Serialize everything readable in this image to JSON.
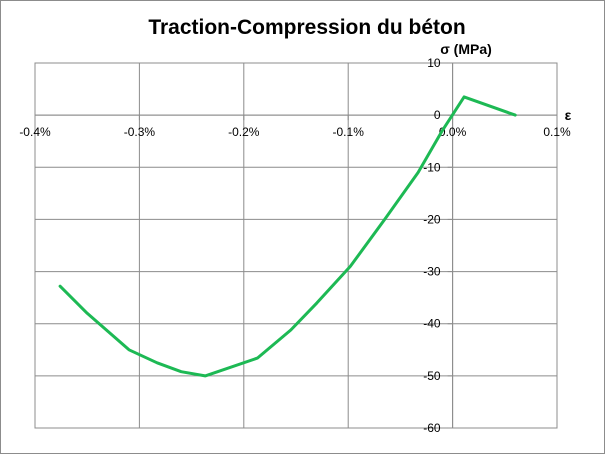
{
  "chart_data": {
    "type": "line",
    "title": "Traction-Compression du béton",
    "xlabel": "ε",
    "ylabel": "σ (MPa)",
    "xlim": [
      -0.4,
      0.1
    ],
    "ylim": [
      -60,
      10
    ],
    "x_ticks": [
      -0.4,
      -0.3,
      -0.2,
      -0.1,
      0.0,
      0.1
    ],
    "x_tick_labels": [
      "-0.4%",
      "-0.3%",
      "-0.2%",
      "-0.1%",
      "0.0%",
      "0.1%"
    ],
    "y_ticks": [
      10,
      0,
      -10,
      -20,
      -30,
      -40,
      -50,
      -60
    ],
    "y_tick_labels": [
      "10",
      "0",
      "-10",
      "-20",
      "-30",
      "-40",
      "-50",
      "-60"
    ],
    "grid": true,
    "legend": "none",
    "series_color": "#1db954",
    "series": [
      {
        "x": [
          -0.376,
          -0.35,
          -0.31,
          -0.283,
          -0.26,
          -0.237,
          -0.187,
          -0.155,
          -0.13,
          -0.098,
          -0.065,
          -0.033,
          -0.01,
          0.011,
          0.06
        ],
        "y": [
          -32.8,
          -38.0,
          -45.0,
          -47.5,
          -49.2,
          -50.0,
          -46.6,
          -41.2,
          -36.0,
          -29.0,
          -20.0,
          -11.0,
          -3.0,
          3.5,
          0.0
        ]
      }
    ]
  }
}
